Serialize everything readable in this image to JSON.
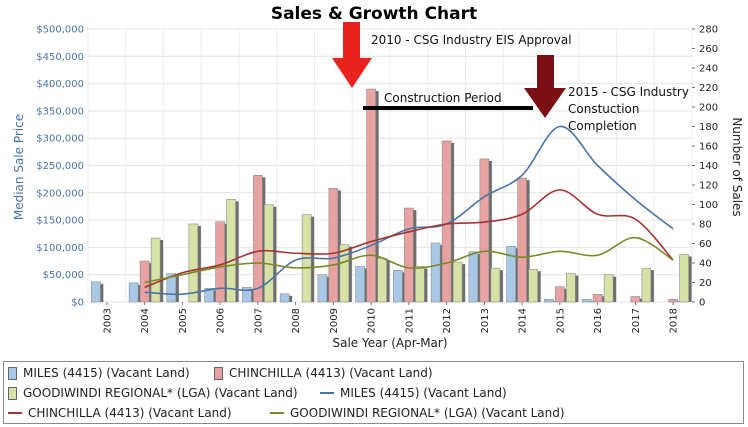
{
  "chart_data": {
    "type": "bar",
    "title": "Sales & Growth Chart",
    "xlabel": "Sale Year (Apr-Mar)",
    "ylabel": "Median Sale Price",
    "y2label": "Number of Sales",
    "categories": [
      "2003",
      "2004",
      "2005",
      "2006",
      "2007",
      "2008",
      "2009",
      "2010",
      "2011",
      "2012",
      "2013",
      "2014",
      "2015",
      "2016",
      "2017",
      "2018"
    ],
    "ylim": [
      0,
      500000
    ],
    "y_ticks": [
      "$0",
      "$50,000",
      "$100,000",
      "$150,000",
      "$200,000",
      "$250,000",
      "$300,000",
      "$350,000",
      "$400,000",
      "$450,000",
      "$500,000"
    ],
    "y2lim": [
      0,
      280
    ],
    "y2_ticks": [
      "0",
      "20",
      "40",
      "60",
      "80",
      "100",
      "120",
      "140",
      "160",
      "180",
      "200",
      "220",
      "240",
      "260",
      "280"
    ],
    "grid": true,
    "bar_series": [
      {
        "name": "MILES (4415) (Vacant Land)",
        "color": "#a9c8e8",
        "values": [
          37000,
          35000,
          52000,
          25000,
          27000,
          15000,
          50000,
          65000,
          58000,
          108000,
          92000,
          102000,
          5000,
          5000,
          0,
          0
        ]
      },
      {
        "name": "CHINCHILLA (4413) (Vacant Land)",
        "color": "#e8a2a2",
        "values": [
          0,
          75000,
          0,
          147000,
          232000,
          0,
          208000,
          390000,
          172000,
          295000,
          262000,
          227000,
          28000,
          14000,
          10000,
          5000
        ]
      },
      {
        "name": "GOODIWINDI REGIONAL* (LGA) (Vacant Land)",
        "color": "#d6e2a6",
        "values": [
          0,
          117000,
          143000,
          188000,
          178000,
          160000,
          105000,
          80000,
          65000,
          73000,
          62000,
          60000,
          52000,
          50000,
          62000,
          87000
        ]
      }
    ],
    "line_series": [
      {
        "name": "MILES (4415) (Vacant Land)",
        "color": "#4a74a8",
        "axis": "right",
        "values": [
          null,
          10,
          8,
          14,
          14,
          43,
          45,
          58,
          75,
          80,
          108,
          130,
          180,
          140,
          105,
          75
        ]
      },
      {
        "name": "CHINCHILLA (4413) (Vacant Land)",
        "color": "#a83232",
        "axis": "right",
        "values": [
          null,
          15,
          30,
          38,
          52,
          50,
          50,
          62,
          72,
          80,
          82,
          90,
          115,
          90,
          85,
          43
        ]
      },
      {
        "name": "GOODIWINDI REGIONAL* (LGA) (Vacant Land)",
        "color": "#7a8a2a",
        "axis": "right",
        "values": [
          null,
          20,
          28,
          36,
          40,
          35,
          38,
          48,
          35,
          40,
          52,
          46,
          52,
          48,
          66,
          43
        ]
      }
    ],
    "annotations": [
      {
        "text": "2010 - CSG Industry EIS Approval",
        "x": "2010"
      },
      {
        "text": "Construction Period",
        "from": "2010",
        "to": "2015"
      },
      {
        "text": "2015 - CSG Industry Constuction Completion",
        "x": "2015"
      }
    ],
    "legend_position": "bottom"
  },
  "legend": {
    "rows": [
      [
        {
          "label": "MILES (4415) (Vacant Land)",
          "kind": "bar",
          "color": "#a9c8e8"
        },
        {
          "label": "CHINCHILLA (4413) (Vacant Land)",
          "kind": "bar",
          "color": "#e8a2a2"
        }
      ],
      [
        {
          "label": "GOODIWINDI REGIONAL* (LGA) (Vacant Land)",
          "kind": "bar",
          "color": "#d6e2a6"
        },
        {
          "label": "MILES (4415) (Vacant Land)",
          "kind": "line",
          "color": "#4a74a8"
        }
      ],
      [
        {
          "label": "CHINCHILLA (4413) (Vacant Land)",
          "kind": "line",
          "color": "#a83232"
        },
        {
          "label": "GOODIWINDI REGIONAL* (LGA) (Vacant Land)",
          "kind": "line",
          "color": "#7a8a2a"
        }
      ]
    ]
  }
}
